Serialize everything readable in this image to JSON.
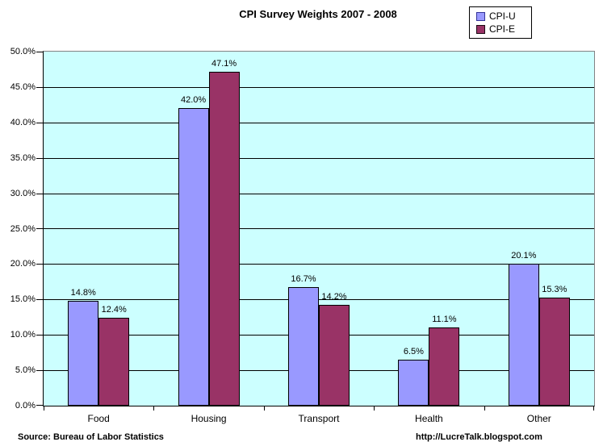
{
  "chart_data": {
    "type": "bar",
    "title": "CPI Survey Weights 2007 - 2008",
    "categories": [
      "Food",
      "Housing",
      "Transport",
      "Health",
      "Other"
    ],
    "series": [
      {
        "name": "CPI-U",
        "color": "#9999FF",
        "border": "#000000",
        "values": [
          14.8,
          42.0,
          16.7,
          6.5,
          20.1
        ]
      },
      {
        "name": "CPI-E",
        "color": "#993366",
        "border": "#000000",
        "values": [
          12.4,
          47.1,
          14.2,
          11.1,
          15.3
        ]
      }
    ],
    "ylim": [
      0,
      50
    ],
    "ytick_step": 5,
    "ytick_format": "0.0%",
    "data_label_format": "0.0%",
    "grid": true,
    "legend_position": "top-right",
    "plot_bg": "#CCFFFF",
    "gridline_color": "#000000",
    "plot_border_color": "#848284"
  },
  "legend": {
    "swatch_borders": [
      "#333399",
      "#1A0A14"
    ]
  },
  "footer": {
    "source": "Source: Bureau of Labor Statistics",
    "url": "http://LucreTalk.blogspot.com"
  }
}
